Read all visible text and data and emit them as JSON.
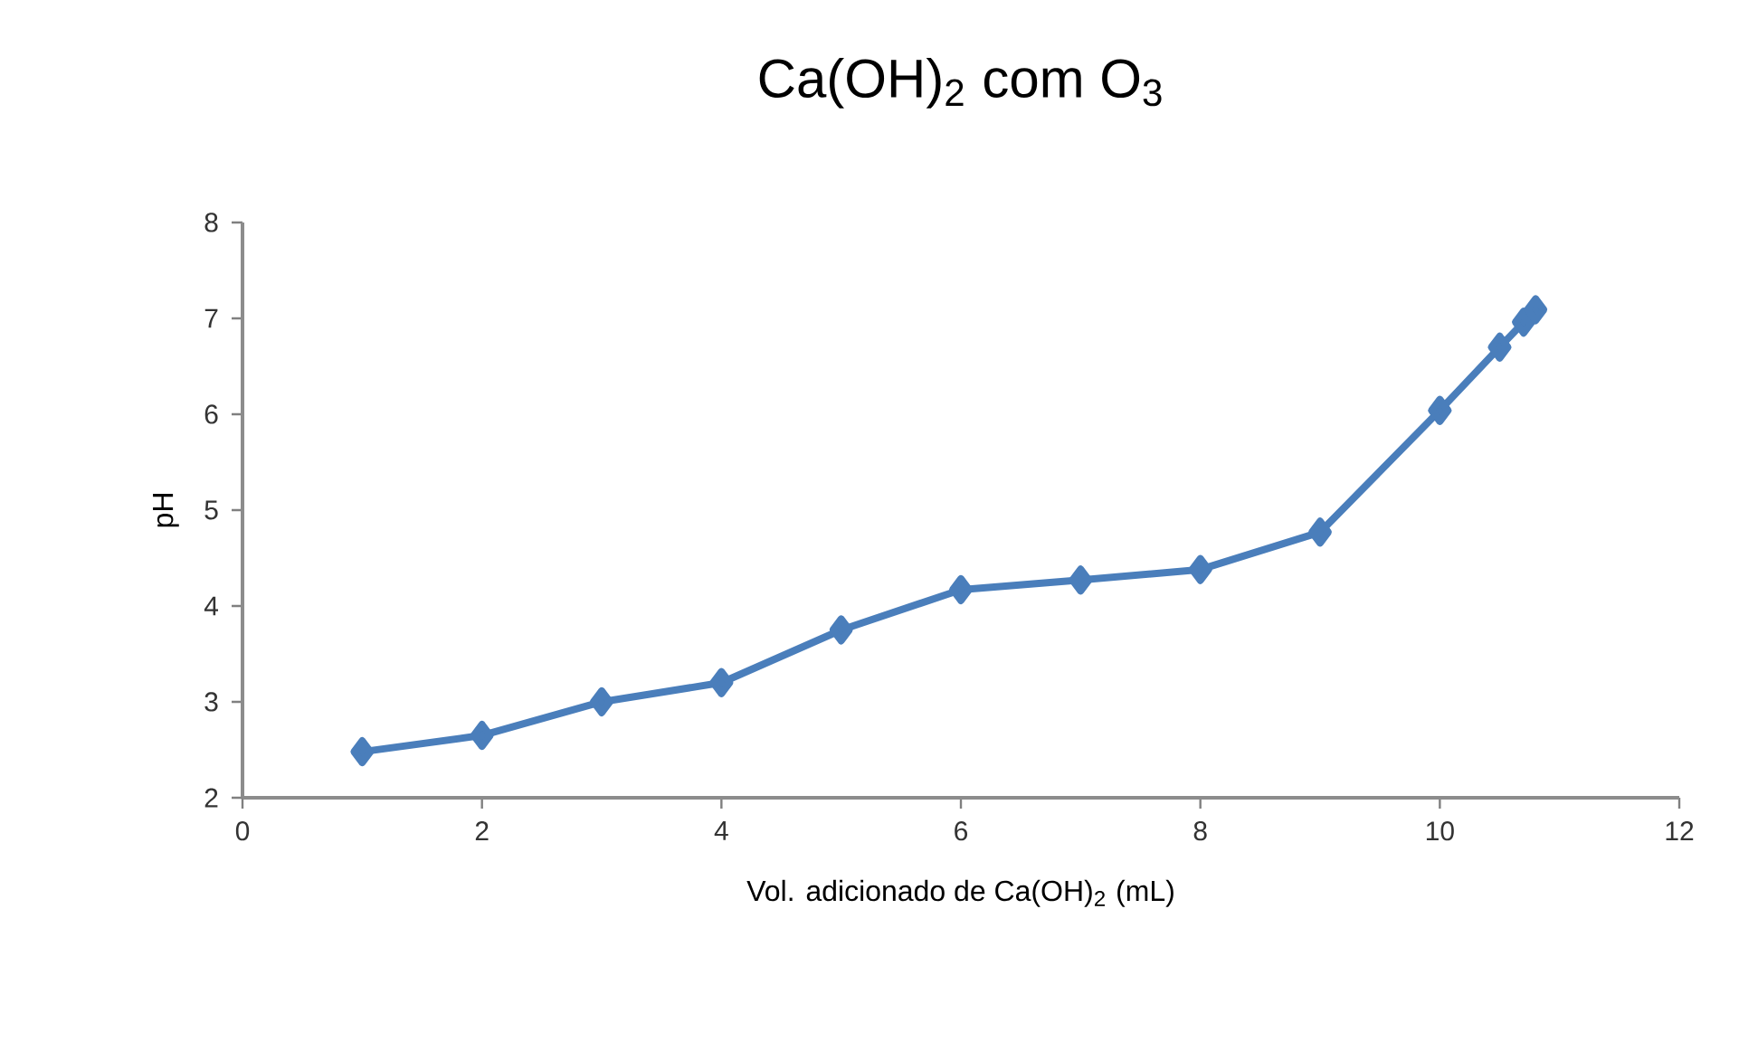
{
  "chart_data": {
    "type": "line",
    "title": "Ca(OH)$_{2}$ com O$_{3}$",
    "xlabel": "Vol. adicionado de Ca(OH)$_{2}$ (mL)",
    "ylabel": "pH",
    "x": [
      1,
      2,
      3,
      4,
      5,
      6,
      7,
      8,
      9,
      10,
      10.5,
      10.7,
      10.8
    ],
    "series": [
      {
        "color": "#4a7ebb",
        "values": [
          2.48,
          2.65,
          3.0,
          3.2,
          3.75,
          4.17,
          4.27,
          4.38,
          4.77,
          6.04,
          6.7,
          6.96,
          7.09
        ]
      }
    ],
    "xlim": [
      0,
      12
    ],
    "ylim": [
      2,
      8
    ],
    "xticks": [
      0,
      2,
      4,
      6,
      8,
      10,
      12
    ],
    "yticks": [
      2,
      3,
      4,
      5,
      6,
      7,
      8
    ],
    "marker": "diamond",
    "line_style": "solid"
  }
}
